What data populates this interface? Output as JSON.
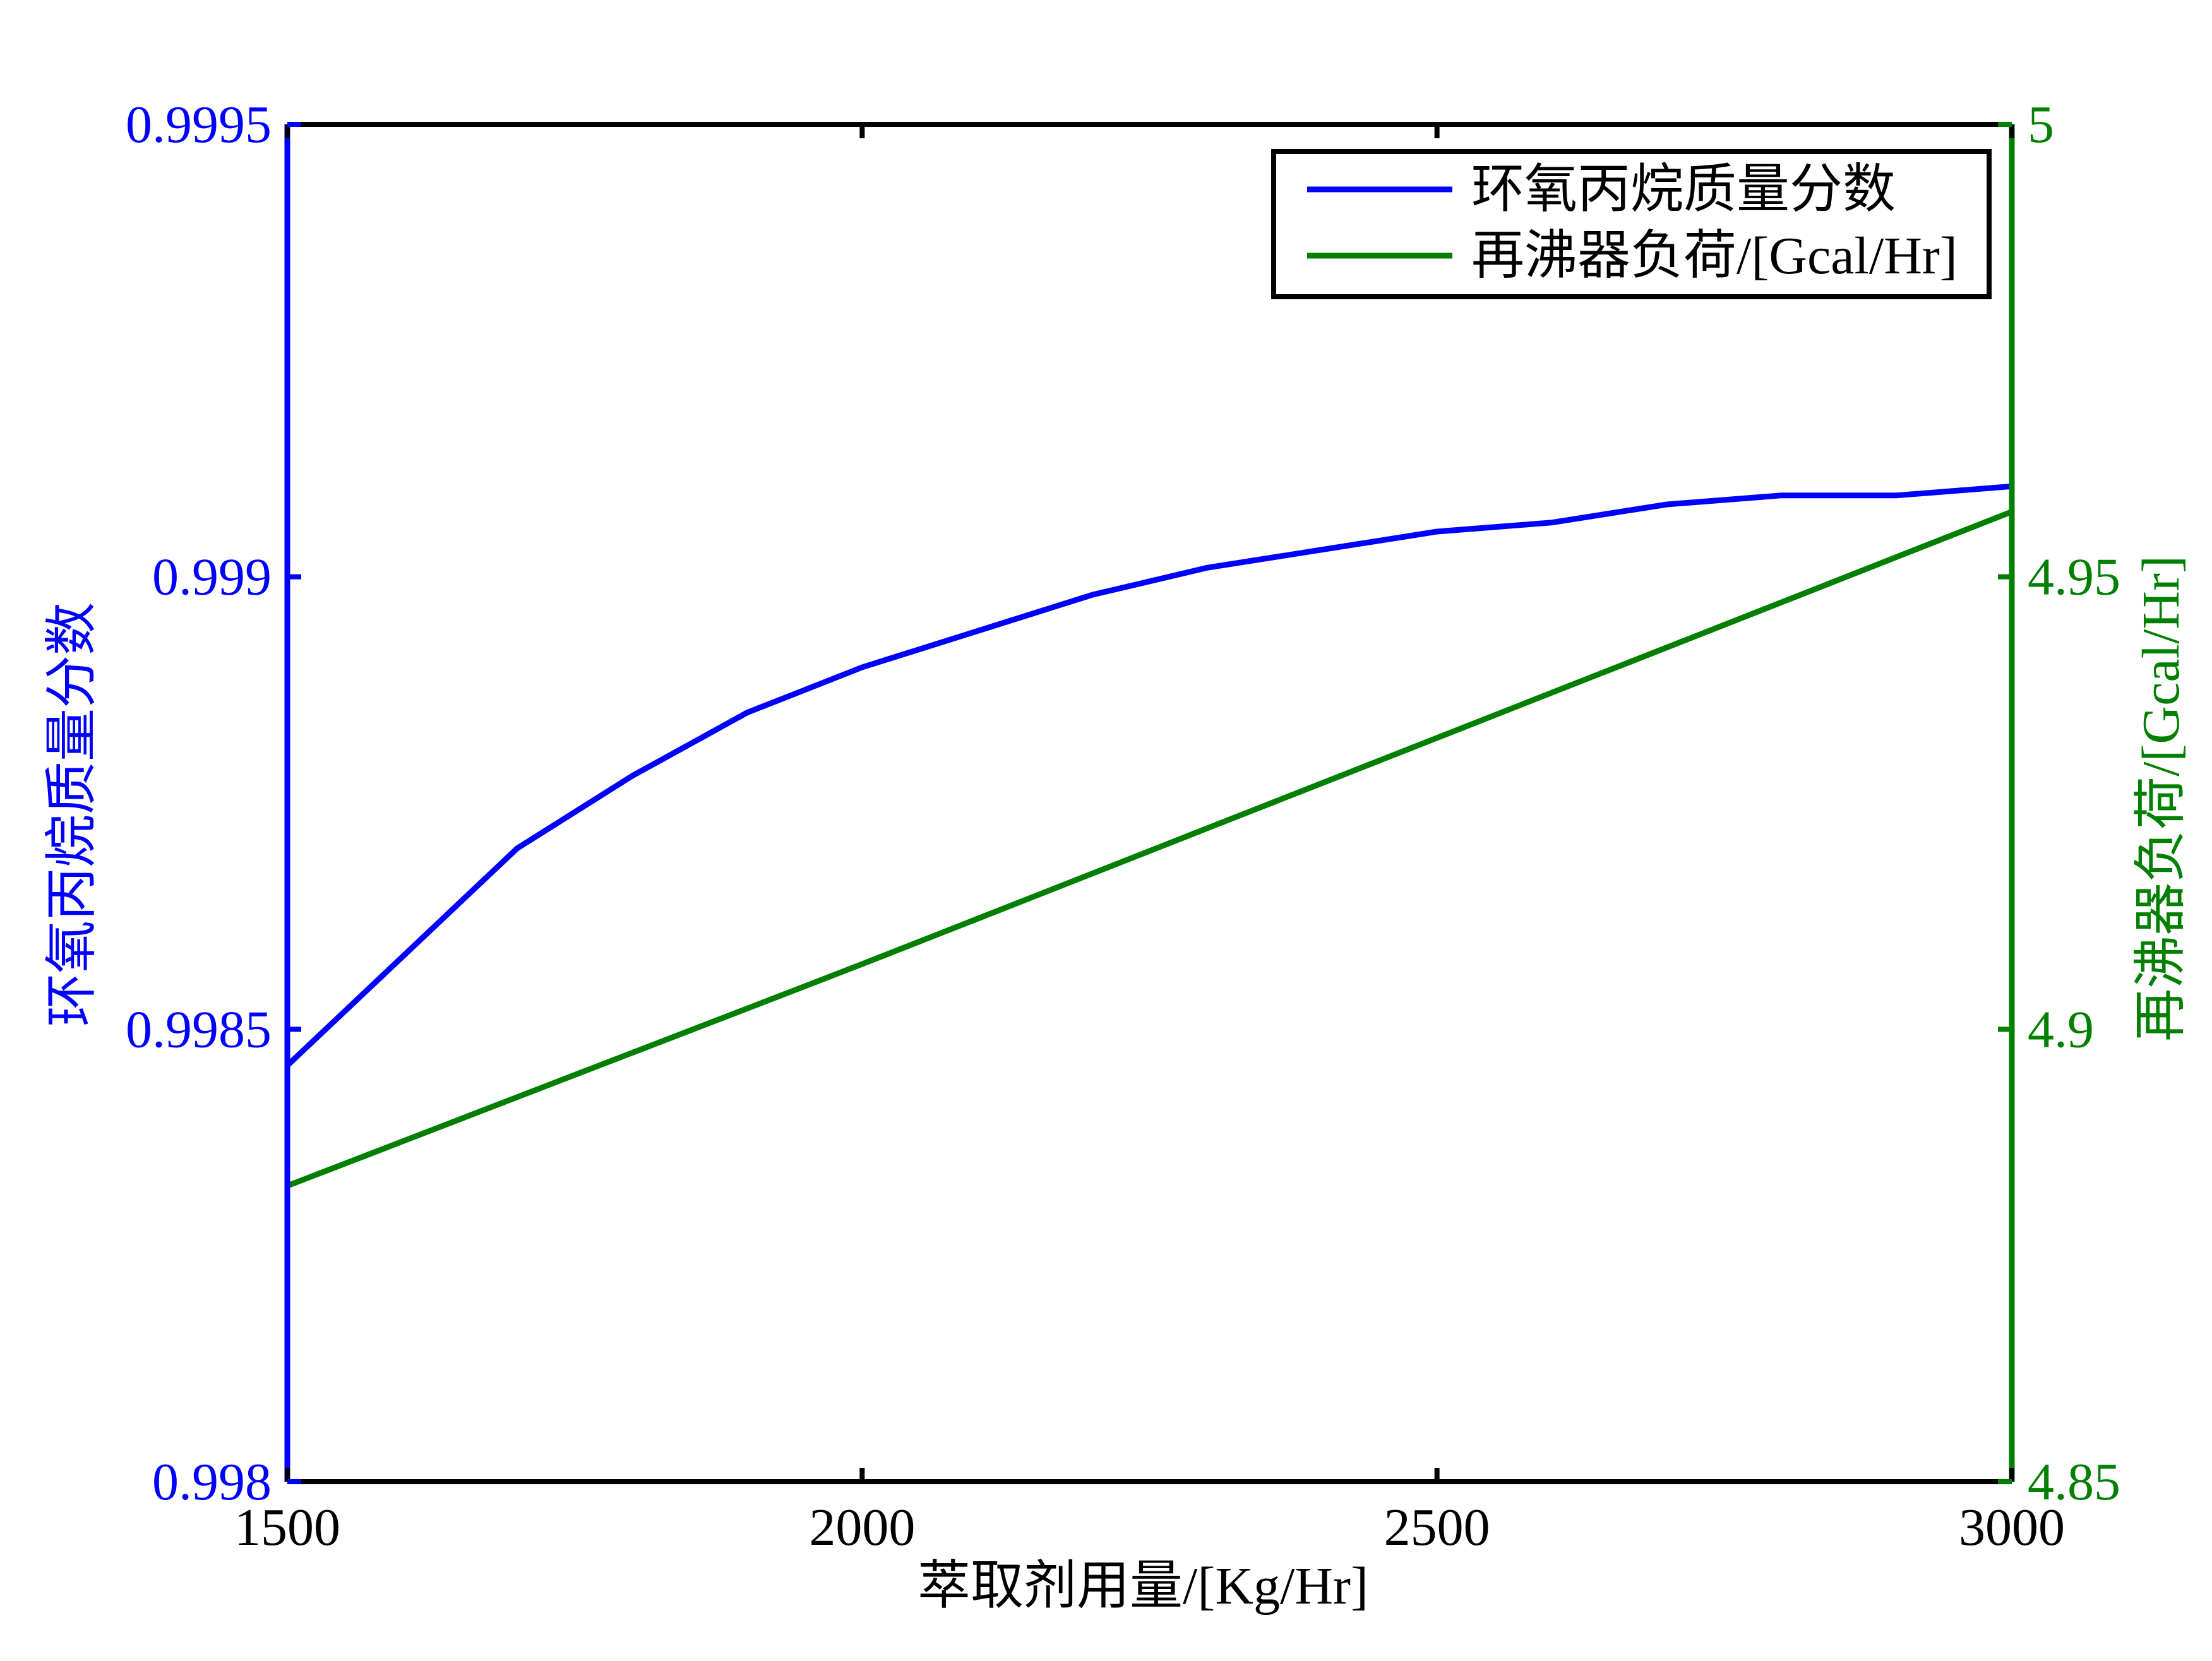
{
  "chart_data": {
    "type": "line",
    "title": "",
    "xlabel": "萃取剂用量/[Kg/Hr]",
    "ylabel_left": "环氧丙烷质量分数",
    "ylabel_right": "再沸器负荷/[Gcal/Hr]",
    "xlim": [
      1500,
      3000
    ],
    "ylim_left": [
      0.998,
      0.9995
    ],
    "ylim_right": [
      4.85,
      5.0
    ],
    "x_ticks": [
      "1500",
      "2000",
      "2500",
      "3000"
    ],
    "y_left_ticks": [
      "0.998",
      "0.9985",
      "0.999",
      "0.9995"
    ],
    "y_right_ticks": [
      "4.85",
      "4.9",
      "4.95",
      "5"
    ],
    "grid": false,
    "legend_position": "top-right",
    "colors": {
      "left_axis": "#0000ff",
      "right_axis": "#007f00",
      "frame": "#000000"
    },
    "x": [
      1500,
      1600,
      1700,
      1800,
      1900,
      2000,
      2100,
      2200,
      2300,
      2400,
      2500,
      2600,
      2700,
      2800,
      2900,
      3000
    ],
    "series": [
      {
        "name": "环氧丙烷质量分数",
        "axis": "left",
        "color": "#0000ff",
        "values": [
          0.99846,
          0.99858,
          0.9987,
          0.99878,
          0.99885,
          0.9989,
          0.99894,
          0.99898,
          0.99901,
          0.99903,
          0.99905,
          0.99906,
          0.99908,
          0.99909,
          0.99909,
          0.9991
        ]
      },
      {
        "name": "再沸器负荷/[Gcal/Hr]",
        "axis": "right",
        "color": "#007f00",
        "values": [
          4.8827,
          4.8876,
          4.8925,
          4.8974,
          4.9023,
          4.9072,
          4.9122,
          4.9172,
          4.9222,
          4.9272,
          4.9322,
          4.9372,
          4.9422,
          4.9472,
          4.9522,
          4.9572
        ]
      }
    ]
  }
}
